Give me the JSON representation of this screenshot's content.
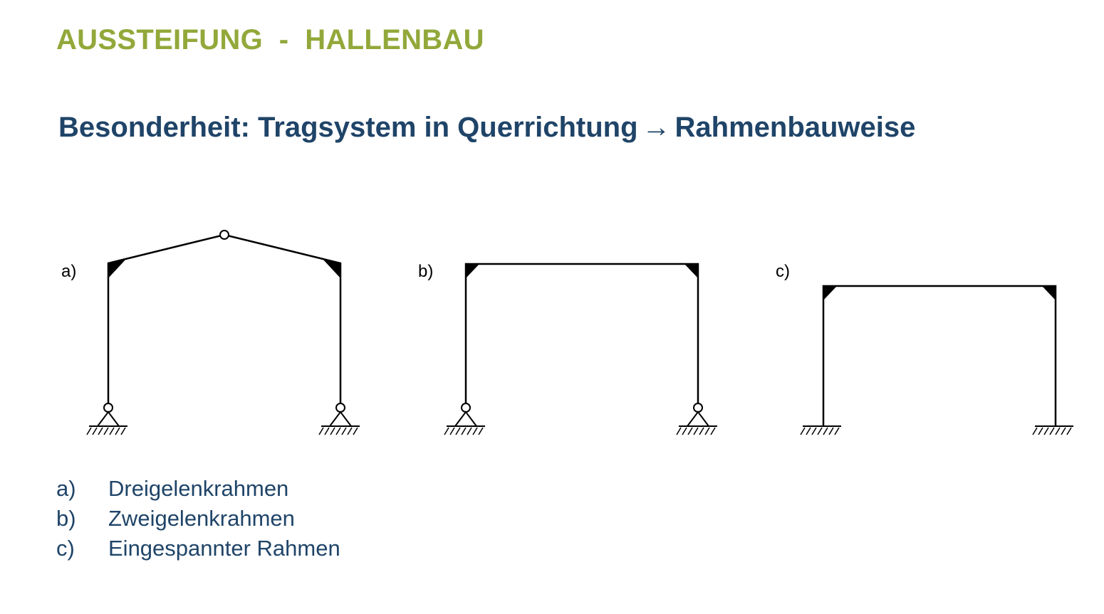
{
  "section_title": "AUSSTEIFUNG  -  HALLENBAU",
  "subtitle": {
    "before_arrow": "Besonderheit: Tragsystem in Querrichtung",
    "arrow": "→",
    "after_arrow": "Rahmenbauweise"
  },
  "diagrams": [
    {
      "label": "a)",
      "type": "Dreigelenkrahmen"
    },
    {
      "label": "b)",
      "type": "Zweigelenkrahmen"
    },
    {
      "label": "c)",
      "type": "Eingespannter Rahmen"
    }
  ],
  "legend": [
    {
      "key": "a)",
      "text": "Dreigelenkrahmen"
    },
    {
      "key": "b)",
      "text": "Zweigelenkrahmen"
    },
    {
      "key": "c)",
      "text": "Eingespannter Rahmen"
    }
  ],
  "colors": {
    "section_title": "#92a83a",
    "subtitle": "#1f4468",
    "legend": "#1f4468",
    "line": "#000000"
  }
}
